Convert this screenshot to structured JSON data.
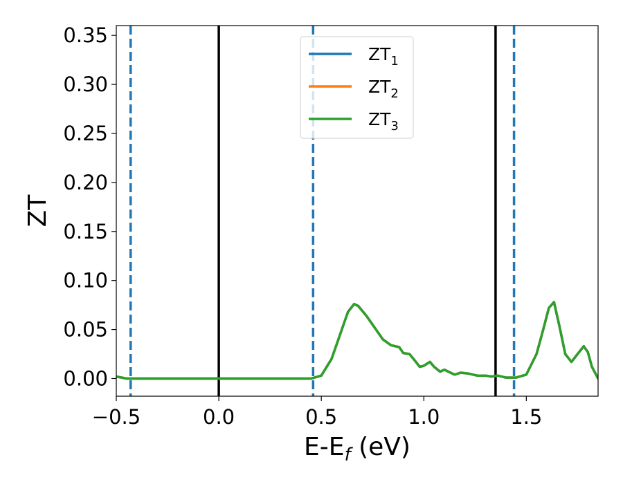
{
  "chart_data": {
    "type": "line",
    "xlabel": "E-E",
    "xlabel_sub": "f",
    "xlabel_suffix": " (eV)",
    "ylabel": "ZT",
    "xlim": [
      -0.5,
      1.85
    ],
    "ylim": [
      -0.018,
      0.36
    ],
    "x_ticks": [
      {
        "value": -0.5,
        "label": "−0.5"
      },
      {
        "value": 0.0,
        "label": "0.0"
      },
      {
        "value": 0.5,
        "label": "0.5"
      },
      {
        "value": 1.0,
        "label": "1.0"
      },
      {
        "value": 1.5,
        "label": "1.5"
      }
    ],
    "y_ticks": [
      {
        "value": 0.0,
        "label": "0.00"
      },
      {
        "value": 0.05,
        "label": "0.05"
      },
      {
        "value": 0.1,
        "label": "0.10"
      },
      {
        "value": 0.15,
        "label": "0.15"
      },
      {
        "value": 0.2,
        "label": "0.20"
      },
      {
        "value": 0.25,
        "label": "0.25"
      },
      {
        "value": 0.3,
        "label": "0.30"
      },
      {
        "value": 0.35,
        "label": "0.35"
      }
    ],
    "grid": false,
    "legend_position": "top-center",
    "series": [
      {
        "name": "ZT",
        "name_sub": "1",
        "color": "#1f77b4",
        "x": [
          -0.5,
          -0.45,
          -0.4,
          -0.3,
          -0.2,
          -0.1,
          0.0,
          0.1,
          0.2,
          0.3,
          0.4,
          0.45,
          0.5,
          0.55,
          0.6,
          0.63,
          0.66,
          0.68,
          0.72,
          0.76,
          0.8,
          0.84,
          0.88,
          0.9,
          0.93,
          0.95,
          0.98,
          1.0,
          1.03,
          1.05,
          1.08,
          1.1,
          1.13,
          1.15,
          1.18,
          1.22,
          1.26,
          1.3,
          1.33,
          1.36,
          1.4,
          1.45,
          1.5,
          1.55,
          1.58,
          1.61,
          1.635,
          1.66,
          1.69,
          1.72,
          1.75,
          1.78,
          1.8,
          1.82,
          1.85
        ],
        "y": [
          0.002,
          0.0,
          0.0,
          0.0,
          0.0,
          0.0,
          0.0,
          0.0,
          0.0,
          0.0,
          0.0,
          0.0,
          0.003,
          0.02,
          0.05,
          0.068,
          0.076,
          0.074,
          0.064,
          0.052,
          0.04,
          0.034,
          0.032,
          0.026,
          0.025,
          0.02,
          0.012,
          0.013,
          0.017,
          0.012,
          0.007,
          0.009,
          0.006,
          0.004,
          0.006,
          0.005,
          0.003,
          0.003,
          0.002,
          0.003,
          0.001,
          0.001,
          0.004,
          0.025,
          0.048,
          0.072,
          0.078,
          0.055,
          0.025,
          0.017,
          0.025,
          0.033,
          0.027,
          0.012,
          0.0
        ]
      },
      {
        "name": "ZT",
        "name_sub": "2",
        "color": "#ff7f0e",
        "x": [
          -0.5,
          -0.45,
          -0.4,
          -0.3,
          -0.2,
          -0.1,
          0.0,
          0.1,
          0.2,
          0.3,
          0.4,
          0.45,
          0.5,
          0.55,
          0.6,
          0.63,
          0.66,
          0.68,
          0.72,
          0.76,
          0.8,
          0.84,
          0.88,
          0.9,
          0.93,
          0.95,
          0.98,
          1.0,
          1.03,
          1.05,
          1.08,
          1.1,
          1.13,
          1.15,
          1.18,
          1.22,
          1.26,
          1.3,
          1.33,
          1.36,
          1.4,
          1.45,
          1.5,
          1.55,
          1.58,
          1.61,
          1.635,
          1.66,
          1.69,
          1.72,
          1.75,
          1.78,
          1.8,
          1.82,
          1.85
        ],
        "y": [
          0.002,
          0.0,
          0.0,
          0.0,
          0.0,
          0.0,
          0.0,
          0.0,
          0.0,
          0.0,
          0.0,
          0.0,
          0.003,
          0.02,
          0.05,
          0.068,
          0.076,
          0.074,
          0.064,
          0.052,
          0.04,
          0.034,
          0.032,
          0.026,
          0.025,
          0.02,
          0.012,
          0.013,
          0.017,
          0.012,
          0.007,
          0.009,
          0.006,
          0.004,
          0.006,
          0.005,
          0.003,
          0.003,
          0.002,
          0.003,
          0.001,
          0.001,
          0.004,
          0.025,
          0.048,
          0.072,
          0.078,
          0.055,
          0.025,
          0.017,
          0.025,
          0.033,
          0.027,
          0.012,
          0.0
        ]
      },
      {
        "name": "ZT",
        "name_sub": "3",
        "color": "#2ca02c",
        "x": [
          -0.5,
          -0.45,
          -0.4,
          -0.3,
          -0.2,
          -0.1,
          0.0,
          0.1,
          0.2,
          0.3,
          0.4,
          0.45,
          0.5,
          0.55,
          0.6,
          0.63,
          0.66,
          0.68,
          0.72,
          0.76,
          0.8,
          0.84,
          0.88,
          0.9,
          0.93,
          0.95,
          0.98,
          1.0,
          1.03,
          1.05,
          1.08,
          1.1,
          1.13,
          1.15,
          1.18,
          1.22,
          1.26,
          1.3,
          1.33,
          1.36,
          1.4,
          1.45,
          1.5,
          1.55,
          1.58,
          1.61,
          1.635,
          1.66,
          1.69,
          1.72,
          1.75,
          1.78,
          1.8,
          1.82,
          1.85
        ],
        "y": [
          0.002,
          0.0,
          0.0,
          0.0,
          0.0,
          0.0,
          0.0,
          0.0,
          0.0,
          0.0,
          0.0,
          0.0,
          0.003,
          0.02,
          0.05,
          0.068,
          0.076,
          0.074,
          0.064,
          0.052,
          0.04,
          0.034,
          0.032,
          0.026,
          0.025,
          0.02,
          0.012,
          0.013,
          0.017,
          0.012,
          0.007,
          0.009,
          0.006,
          0.004,
          0.006,
          0.005,
          0.003,
          0.003,
          0.002,
          0.003,
          0.001,
          0.001,
          0.004,
          0.025,
          0.048,
          0.072,
          0.078,
          0.055,
          0.025,
          0.017,
          0.025,
          0.033,
          0.027,
          0.012,
          0.0
        ]
      }
    ],
    "vertical_lines": [
      {
        "x": -0.43,
        "style": "dashed",
        "color": "#1f77b4"
      },
      {
        "x": 0.0,
        "style": "solid",
        "color": "#000000"
      },
      {
        "x": 0.46,
        "style": "dashed",
        "color": "#1f77b4"
      },
      {
        "x": 1.35,
        "style": "solid",
        "color": "#000000"
      },
      {
        "x": 1.44,
        "style": "dashed",
        "color": "#1f77b4"
      }
    ]
  }
}
